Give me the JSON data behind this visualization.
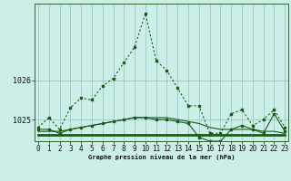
{
  "title": "Graphe pression niveau de la mer (hPa)",
  "background_color": "#cceee8",
  "grid_color": "#99ccbb",
  "line_color": "#1a5c1a",
  "x_labels": [
    "0",
    "1",
    "2",
    "3",
    "4",
    "5",
    "6",
    "7",
    "8",
    "9",
    "10",
    "11",
    "12",
    "13",
    "14",
    "15",
    "16",
    "17",
    "18",
    "19",
    "20",
    "21",
    "22",
    "23"
  ],
  "y_ticks": [
    1025,
    1026
  ],
  "ylim": [
    1024.45,
    1027.95
  ],
  "xlim": [
    -0.3,
    23.3
  ],
  "series_main": [
    1024.8,
    1025.05,
    1024.75,
    1025.3,
    1025.55,
    1025.5,
    1025.85,
    1026.05,
    1026.45,
    1026.85,
    1027.7,
    1026.5,
    1026.25,
    1025.8,
    1025.35,
    1025.35,
    1024.65,
    1024.65,
    1025.15,
    1025.25,
    1024.85,
    1025.0,
    1025.25,
    1024.8
  ],
  "series_flat": [
    1024.6,
    1024.6,
    1024.6,
    1024.6,
    1024.6,
    1024.6,
    1024.6,
    1024.6,
    1024.6,
    1024.6,
    1024.6,
    1024.6,
    1024.6,
    1024.6,
    1024.6,
    1024.6,
    1024.6,
    1024.6,
    1024.6,
    1024.6,
    1024.6,
    1024.6,
    1024.6,
    1024.6
  ],
  "series_smooth": [
    1024.7,
    1024.7,
    1024.7,
    1024.75,
    1024.8,
    1024.85,
    1024.9,
    1024.95,
    1025.0,
    1025.05,
    1025.05,
    1025.05,
    1025.05,
    1025.0,
    1024.95,
    1024.9,
    1024.8,
    1024.75,
    1024.75,
    1024.75,
    1024.75,
    1024.7,
    1024.7,
    1024.65
  ],
  "series_secondary": [
    1024.75,
    1024.75,
    1024.65,
    1024.75,
    1024.8,
    1024.85,
    1024.9,
    1024.95,
    1025.0,
    1025.05,
    1025.05,
    1025.0,
    1025.0,
    1024.95,
    1024.9,
    1024.55,
    1024.45,
    1024.45,
    1024.75,
    1024.85,
    1024.75,
    1024.65,
    1025.15,
    1024.7
  ],
  "ylabel_fontsize": 6,
  "xlabel_fontsize": 5,
  "tick_fontsize": 5.5
}
